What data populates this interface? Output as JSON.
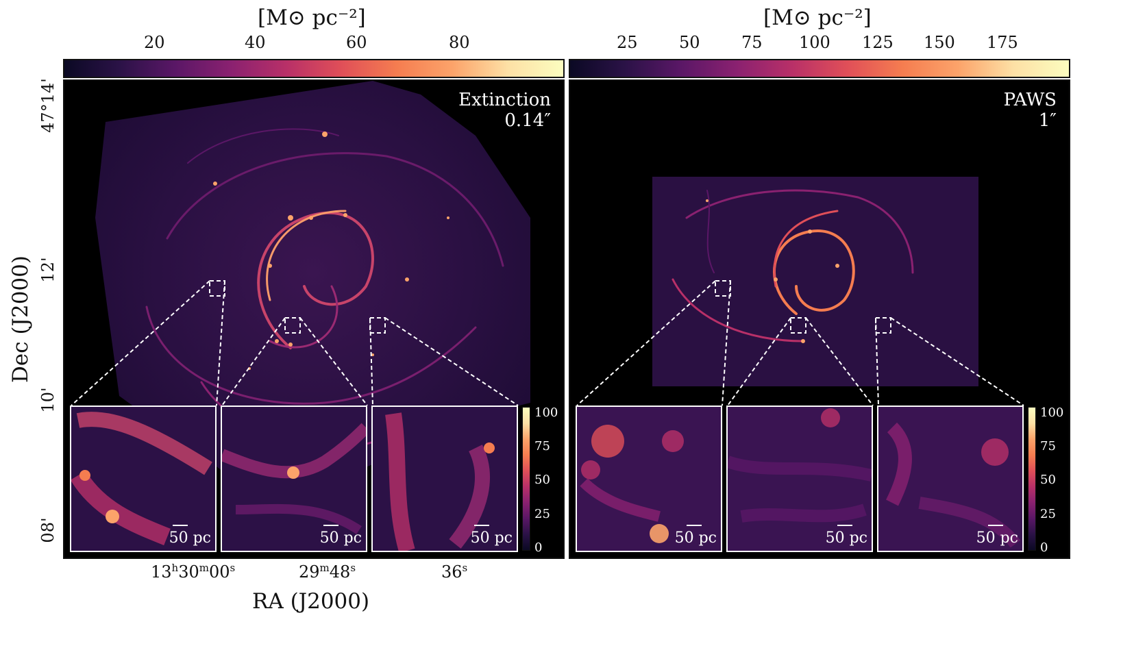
{
  "left": {
    "colorbar_unit": "[M⊙ pc⁻²]",
    "colorbar_ticks": [
      "20",
      "40",
      "60",
      "80"
    ],
    "label": [
      "Extinction",
      "0.14″"
    ],
    "insets": [
      {
        "scale_label": "50 pc"
      },
      {
        "scale_label": "50 pc"
      },
      {
        "scale_label": "50 pc"
      }
    ],
    "inset_colorbar_ticks": [
      "100",
      "75",
      "50",
      "25",
      "0"
    ]
  },
  "right": {
    "colorbar_unit": "[M⊙ pc⁻²]",
    "colorbar_ticks": [
      "25",
      "50",
      "75",
      "100",
      "125",
      "150",
      "175"
    ],
    "label": [
      "PAWS",
      "1″"
    ],
    "insets": [
      {
        "scale_label": "50 pc"
      },
      {
        "scale_label": "50 pc"
      },
      {
        "scale_label": "50 pc"
      }
    ],
    "inset_colorbar_ticks": [
      "100",
      "75",
      "50",
      "25",
      "0"
    ]
  },
  "axes": {
    "ylabel": "Dec (J2000)",
    "xlabel": "RA (J2000)",
    "yticks": [
      "47°14'",
      "12'",
      "10'",
      "08'"
    ],
    "xticks": [
      {
        "main": "13",
        "sup1": "h",
        "mid": "30",
        "sup2": "m",
        "end": "00",
        "sup3": "s"
      },
      {
        "main": "29",
        "sup1": "m",
        "mid": "48",
        "sup2": "s",
        "end": "",
        "sup3": ""
      },
      {
        "main": "36",
        "sup1": "s",
        "mid": "",
        "sup2": "",
        "end": "",
        "sup3": ""
      }
    ]
  },
  "colormap": [
    "#0b0924",
    "#2b1247",
    "#5a1766",
    "#8a2170",
    "#b83068",
    "#e04f58",
    "#f57d50",
    "#fca36a",
    "#fde0a5",
    "#fcfdbf"
  ]
}
